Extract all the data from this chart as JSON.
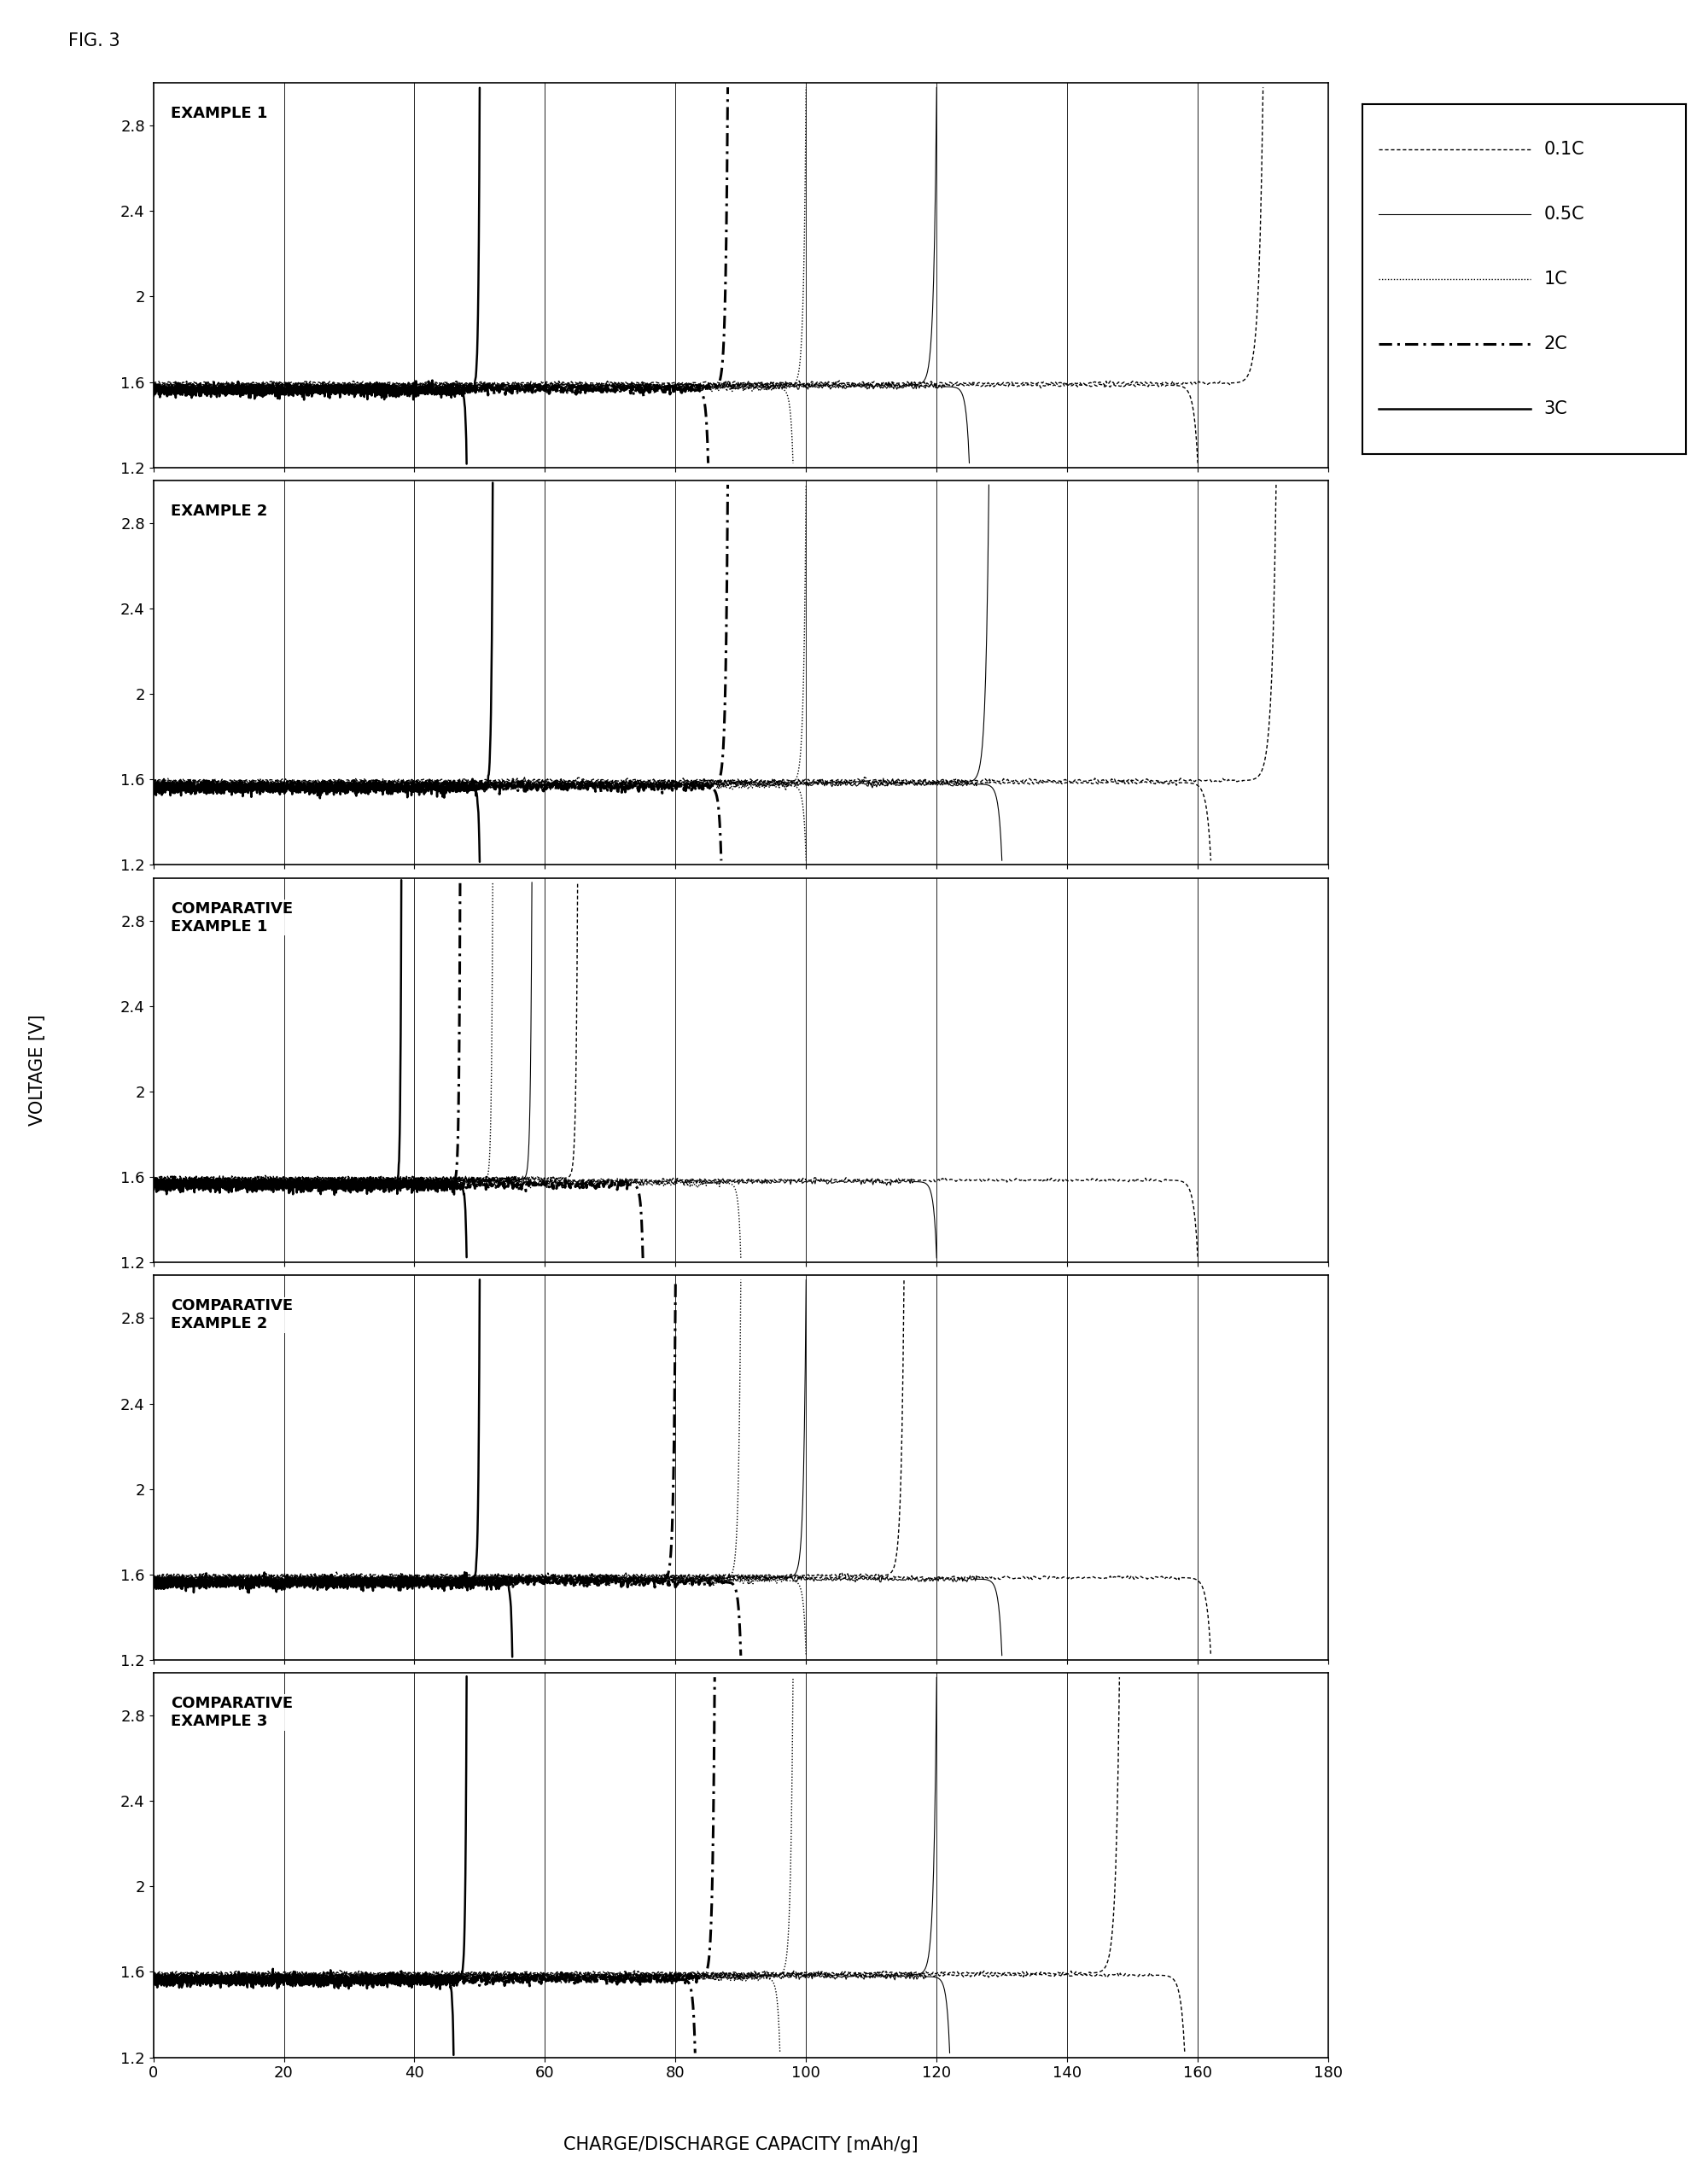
{
  "fig_label": "FIG. 3",
  "xlabel": "CHARGE/DISCHARGE CAPACITY [mAh/g]",
  "ylabel": "VOLTAGE [V]",
  "xlim": [
    0,
    180
  ],
  "ylim": [
    1.2,
    3.0
  ],
  "ytick_labels": [
    "1.2",
    "1.6",
    "2",
    "2.4",
    "2.8"
  ],
  "ytick_vals": [
    1.2,
    1.6,
    2.0,
    2.4,
    2.8
  ],
  "xtick_vals": [
    0,
    20,
    40,
    60,
    80,
    100,
    120,
    140,
    160,
    180
  ],
  "vlines": [
    20,
    40,
    60,
    80,
    100,
    120,
    140,
    160
  ],
  "subplot_labels": [
    "EXAMPLE 1",
    "EXAMPLE 2",
    "COMPARATIVE\nEXAMPLE 1",
    "COMPARATIVE\nEXAMPLE 2",
    "COMPARATIVE\nEXAMPLE 3"
  ],
  "legend_items": [
    {
      "label": "0.1C",
      "ls": "fine_dash"
    },
    {
      "label": "0.5C",
      "ls": "solid_noisy"
    },
    {
      "label": "1C",
      "ls": "dotted"
    },
    {
      "label": "2C",
      "ls": "dash_dot_heavy"
    },
    {
      "label": "3C",
      "ls": "wavy_solid"
    }
  ],
  "subplots": [
    {
      "name": "EXAMPLE 1",
      "curves": [
        {
          "c_rate": "0.1C",
          "charge_cap": 170,
          "discharge_cap": 160
        },
        {
          "c_rate": "0.5C",
          "charge_cap": 120,
          "discharge_cap": 125
        },
        {
          "c_rate": "1C",
          "charge_cap": 100,
          "discharge_cap": 98
        },
        {
          "c_rate": "2C",
          "charge_cap": 88,
          "discharge_cap": 85
        },
        {
          "c_rate": "3C",
          "charge_cap": 50,
          "discharge_cap": 48
        }
      ]
    },
    {
      "name": "EXAMPLE 2",
      "curves": [
        {
          "c_rate": "0.1C",
          "charge_cap": 172,
          "discharge_cap": 162
        },
        {
          "c_rate": "0.5C",
          "charge_cap": 128,
          "discharge_cap": 130
        },
        {
          "c_rate": "1C",
          "charge_cap": 100,
          "discharge_cap": 100
        },
        {
          "c_rate": "2C",
          "charge_cap": 88,
          "discharge_cap": 87
        },
        {
          "c_rate": "3C",
          "charge_cap": 52,
          "discharge_cap": 50
        }
      ]
    },
    {
      "name": "COMPARATIVE\nEXAMPLE 1",
      "curves": [
        {
          "c_rate": "0.1C",
          "charge_cap": 65,
          "discharge_cap": 160
        },
        {
          "c_rate": "0.5C",
          "charge_cap": 58,
          "discharge_cap": 120
        },
        {
          "c_rate": "1C",
          "charge_cap": 52,
          "discharge_cap": 90
        },
        {
          "c_rate": "2C",
          "charge_cap": 47,
          "discharge_cap": 75
        },
        {
          "c_rate": "3C",
          "charge_cap": 38,
          "discharge_cap": 48
        }
      ]
    },
    {
      "name": "COMPARATIVE\nEXAMPLE 2",
      "curves": [
        {
          "c_rate": "0.1C",
          "charge_cap": 115,
          "discharge_cap": 162
        },
        {
          "c_rate": "0.5C",
          "charge_cap": 100,
          "discharge_cap": 130
        },
        {
          "c_rate": "1C",
          "charge_cap": 90,
          "discharge_cap": 100
        },
        {
          "c_rate": "2C",
          "charge_cap": 80,
          "discharge_cap": 90
        },
        {
          "c_rate": "3C",
          "charge_cap": 50,
          "discharge_cap": 55
        }
      ]
    },
    {
      "name": "COMPARATIVE\nEXAMPLE 3",
      "curves": [
        {
          "c_rate": "0.1C",
          "charge_cap": 148,
          "discharge_cap": 158
        },
        {
          "c_rate": "0.5C",
          "charge_cap": 120,
          "discharge_cap": 122
        },
        {
          "c_rate": "1C",
          "charge_cap": 98,
          "discharge_cap": 96
        },
        {
          "c_rate": "2C",
          "charge_cap": 86,
          "discharge_cap": 83
        },
        {
          "c_rate": "3C",
          "charge_cap": 48,
          "discharge_cap": 46
        }
      ]
    }
  ]
}
